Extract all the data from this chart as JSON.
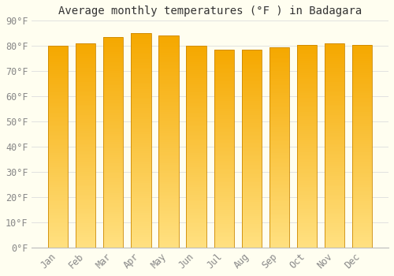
{
  "title": "Average monthly temperatures (°F ) in Badagara",
  "months": [
    "Jan",
    "Feb",
    "Mar",
    "Apr",
    "May",
    "Jun",
    "Jul",
    "Aug",
    "Sep",
    "Oct",
    "Nov",
    "Dec"
  ],
  "values": [
    80,
    81,
    83.5,
    85,
    84,
    80,
    78.5,
    78.5,
    79.5,
    80.5,
    81,
    80.5
  ],
  "bar_color_top": "#F5A800",
  "bar_color_bottom": "#FFE080",
  "bar_edge_color": "#CC8800",
  "background_color": "#FFFEF0",
  "grid_color": "#DDDDDD",
  "ylim": [
    0,
    90
  ],
  "yticks": [
    0,
    10,
    20,
    30,
    40,
    50,
    60,
    70,
    80,
    90
  ],
  "ytick_labels": [
    "0°F",
    "10°F",
    "20°F",
    "30°F",
    "40°F",
    "50°F",
    "60°F",
    "70°F",
    "80°F",
    "90°F"
  ],
  "title_fontsize": 10,
  "tick_fontsize": 8.5,
  "bar_width": 0.72,
  "n_gradient_steps": 100
}
